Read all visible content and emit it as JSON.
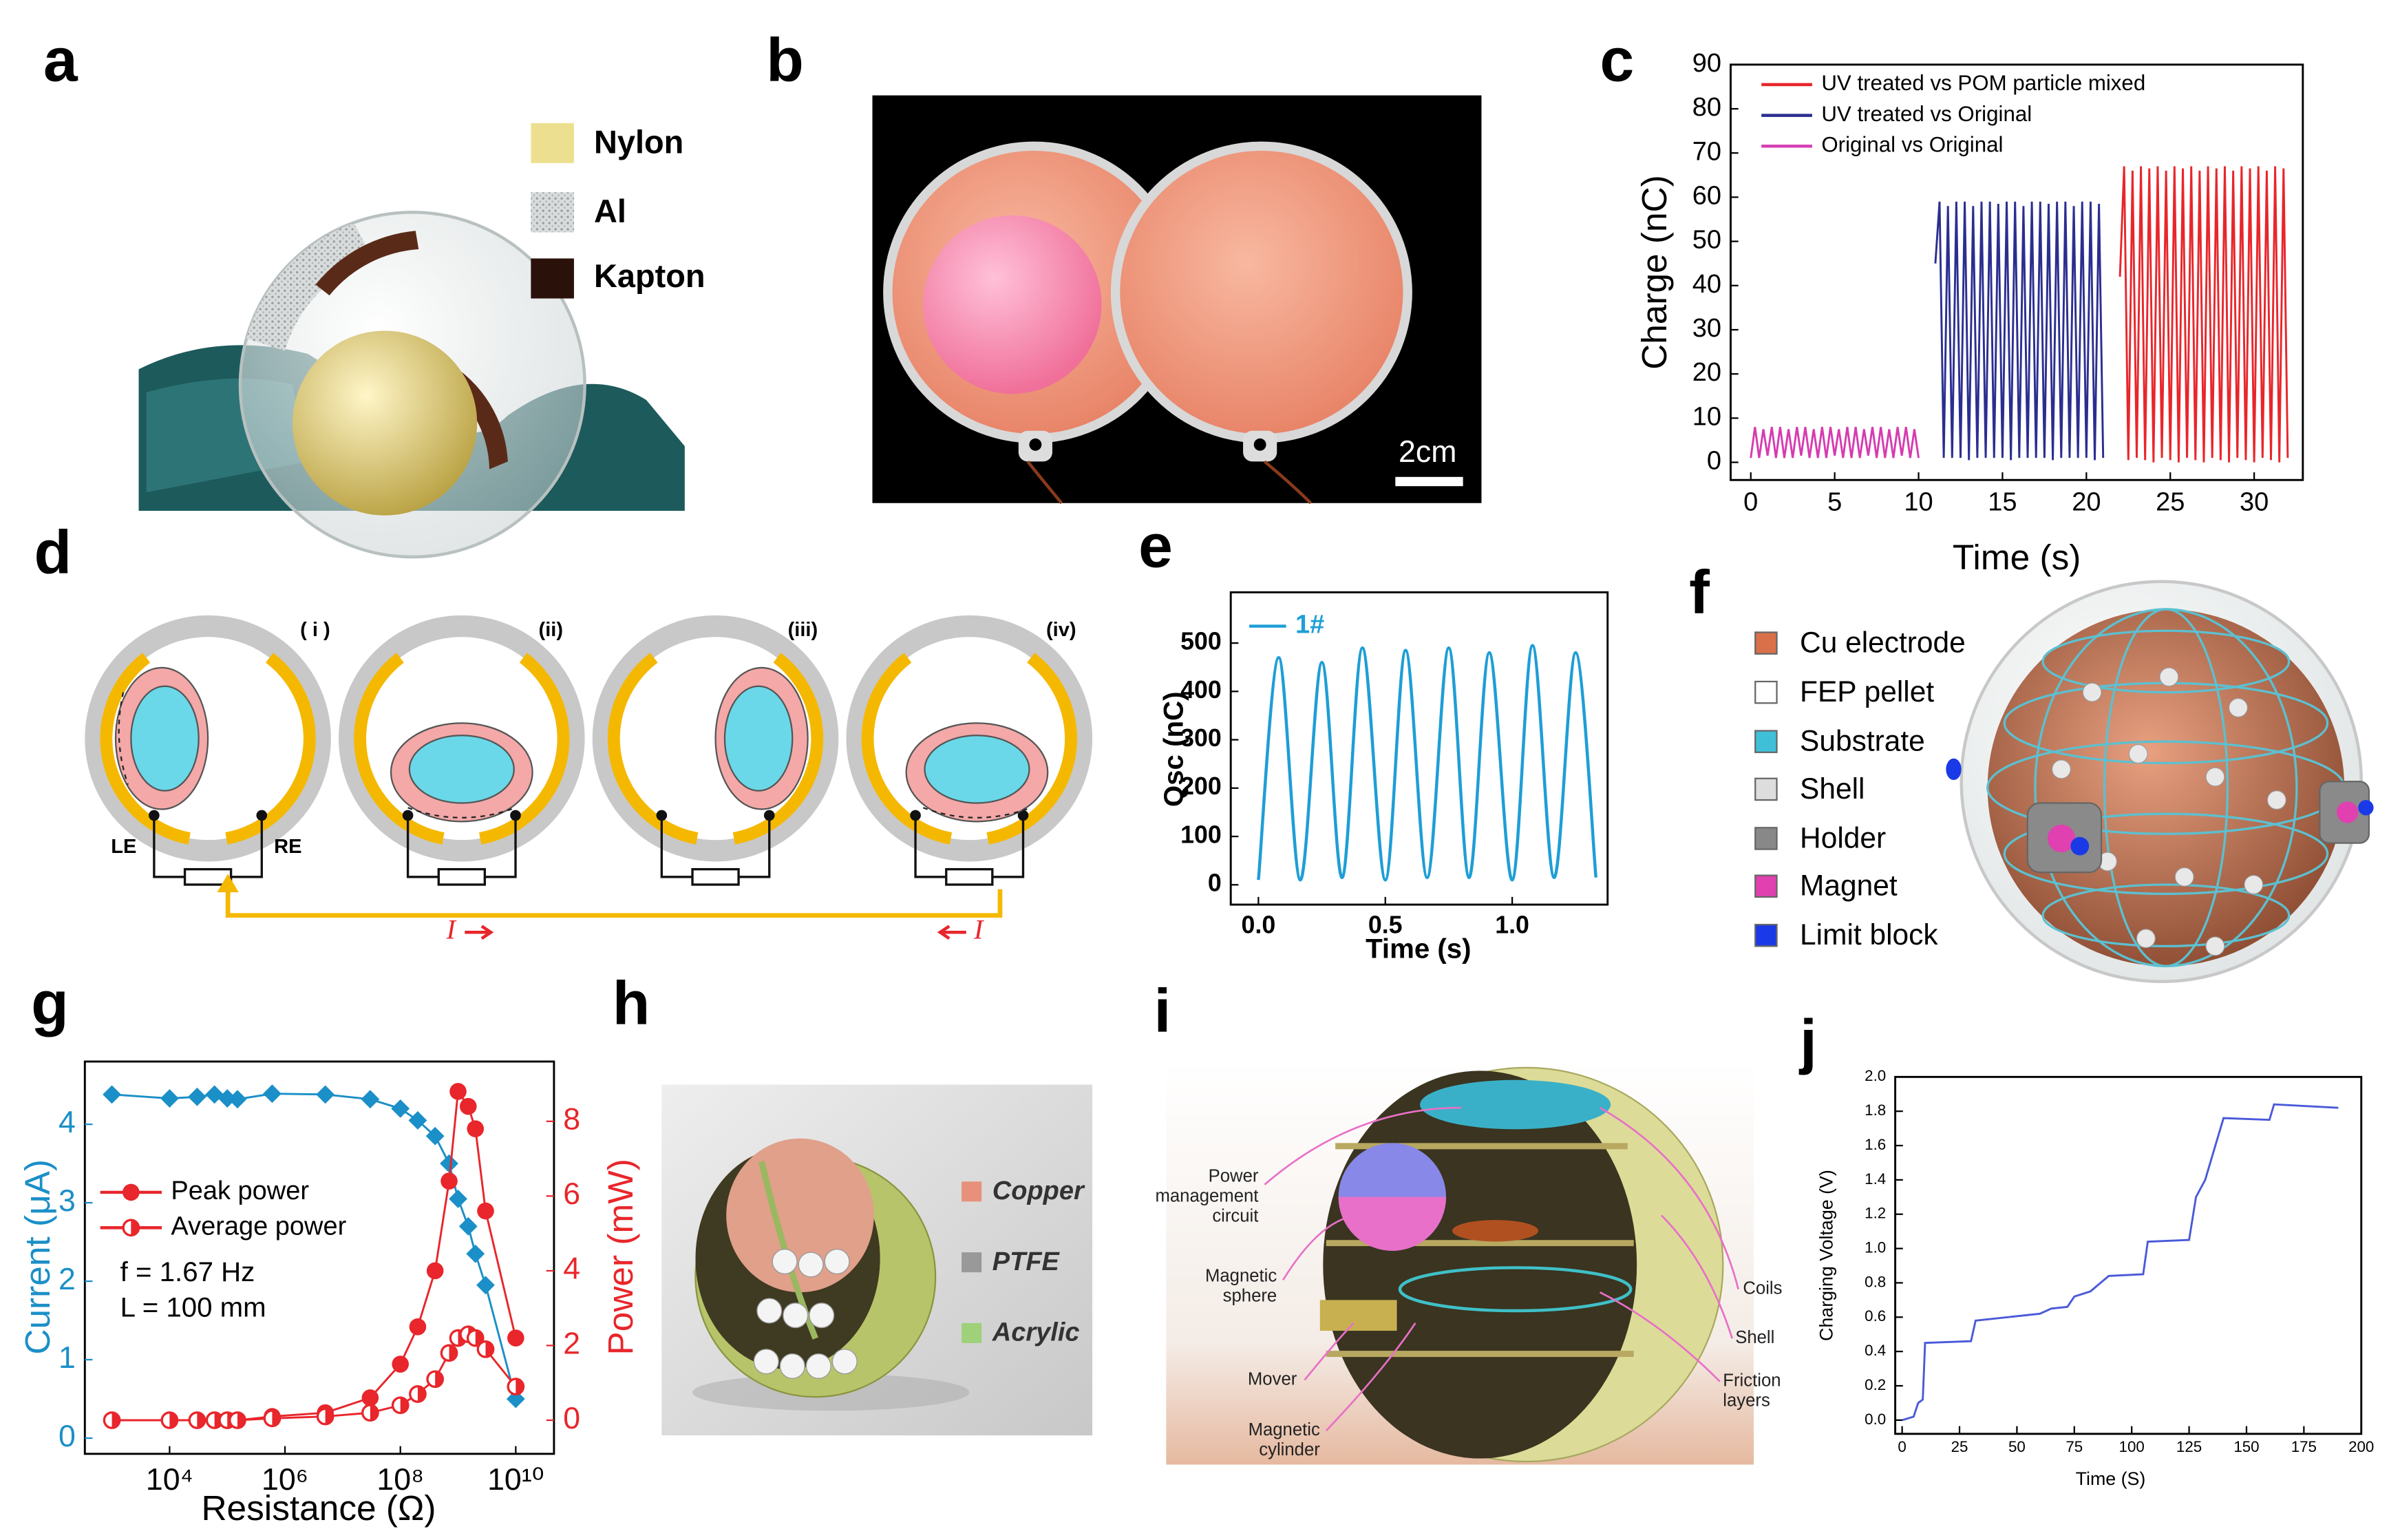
{
  "panel_labels": [
    "a",
    "b",
    "c",
    "d",
    "e",
    "f",
    "g",
    "h",
    "i",
    "j"
  ],
  "panel_a": {
    "legend": [
      "Nylon",
      "Al",
      "Kapton"
    ]
  },
  "panel_b": {
    "scale_bar": "2cm"
  },
  "panel_d": {
    "stages": [
      "( i )",
      "(ii)",
      "(iii)",
      "(iv)"
    ],
    "electrodes": [
      "LE",
      "RE"
    ],
    "current": [
      "I",
      "I"
    ]
  },
  "panel_f": {
    "legend": [
      "Cu electrode",
      "FEP pellet",
      "Substrate",
      "Shell",
      "Holder",
      "Magnet",
      "Limit block"
    ]
  },
  "panel_h": {
    "legend": [
      "Copper",
      "PTFE",
      "Acrylic"
    ]
  },
  "panel_i": {
    "labels": [
      [
        "Power",
        "management",
        "circuit"
      ],
      [
        "Magnetic",
        "sphere"
      ],
      [
        "Mover"
      ],
      [
        "Magnetic",
        "cylinder"
      ],
      [
        "Coils"
      ],
      [
        "Shell"
      ],
      [
        "Friction",
        "layers"
      ]
    ]
  },
  "chart_data": [
    {
      "type": "line",
      "xlabel": "Time (s)",
      "ylabel": "Charge (nC)",
      "xlim": [
        -1.2,
        32.9
      ],
      "ylim": [
        -4,
        90
      ],
      "xticks": [
        0,
        5,
        10,
        15,
        20,
        25,
        30
      ],
      "yticks": [
        0,
        10,
        20,
        30,
        40,
        50,
        60,
        70,
        80,
        90
      ],
      "legend": "upper left",
      "series": [
        {
          "name": "UV treated vs POM particle mixed",
          "color": "#e8262b",
          "x": [
            22,
            22.25,
            22.5,
            22.75,
            23,
            23.25,
            23.5,
            23.75,
            24,
            24.25,
            24.5,
            24.75,
            25,
            25.25,
            25.5,
            25.75,
            26,
            26.25,
            26.5,
            26.75,
            27,
            27.25,
            27.5,
            27.75,
            28,
            28.25,
            28.5,
            28.75,
            29,
            29.25,
            29.5,
            29.75,
            30,
            30.25,
            30.5,
            30.75,
            31,
            31.25,
            31.5,
            31.75,
            32
          ],
          "values": [
            42,
            67,
            0.5,
            66,
            1,
            67,
            0.5,
            66.5,
            0,
            67,
            1,
            66,
            0.5,
            67,
            0,
            66.5,
            1,
            67,
            0.5,
            66,
            0,
            67,
            1,
            66.5,
            0.5,
            67,
            0,
            66,
            1,
            67,
            0.5,
            66.5,
            0,
            67,
            1,
            66,
            0.5,
            67,
            0,
            66.5,
            1
          ]
        },
        {
          "name": "UV treated vs Original",
          "color": "#2b2e8f",
          "x": [
            11,
            11.25,
            11.5,
            11.75,
            12,
            12.25,
            12.5,
            12.75,
            13,
            13.25,
            13.5,
            13.75,
            14,
            14.25,
            14.5,
            14.75,
            15,
            15.25,
            15.5,
            15.75,
            16,
            16.25,
            16.5,
            16.75,
            17,
            17.25,
            17.5,
            17.75,
            18,
            18.25,
            18.5,
            18.75,
            19,
            19.25,
            19.5,
            19.75,
            20,
            20.25,
            20.5,
            20.75,
            21
          ],
          "values": [
            45,
            59,
            1,
            58,
            1,
            59,
            1,
            59,
            0.5,
            58,
            1,
            59,
            1,
            59,
            1,
            58.5,
            1,
            59,
            0.5,
            59,
            1,
            58,
            1,
            59,
            1,
            59,
            1,
            58.5,
            0.5,
            59,
            1,
            59,
            1,
            58,
            1,
            59,
            1,
            59,
            0.5,
            58.5,
            1
          ]
        },
        {
          "name": "Original vs Original",
          "color": "#d63bb0",
          "x": [
            0,
            0.25,
            0.5,
            0.75,
            1,
            1.25,
            1.5,
            1.75,
            2,
            2.25,
            2.5,
            2.75,
            3,
            3.25,
            3.5,
            3.75,
            4,
            4.25,
            4.5,
            4.75,
            5,
            5.25,
            5.5,
            5.75,
            6,
            6.25,
            6.5,
            6.75,
            7,
            7.25,
            7.5,
            7.75,
            8,
            8.25,
            8.5,
            8.75,
            9,
            9.25,
            9.5,
            9.75,
            10
          ],
          "values": [
            1,
            8,
            1,
            7.5,
            1.5,
            8,
            1,
            8,
            1,
            7.5,
            1,
            8,
            1.5,
            8,
            1,
            7.5,
            1,
            8,
            1,
            8,
            1.5,
            7.5,
            1,
            8,
            1,
            8,
            1,
            7.5,
            1.5,
            8,
            1,
            8,
            1,
            7.5,
            1,
            8,
            1.5,
            8,
            1,
            7.5,
            1
          ]
        }
      ]
    },
    {
      "type": "line",
      "xlabel": "Time (s)",
      "ylabel": "Qsc (nC)",
      "smooth": true,
      "xlim": [
        -0.109,
        1.376
      ],
      "ylim": [
        -41,
        605
      ],
      "xticks": [
        {
          "value": 0,
          "label": "0.0"
        },
        0.5,
        {
          "value": 1,
          "label": "1.0"
        }
      ],
      "yticks": [
        0,
        100,
        200,
        300,
        400,
        500
      ],
      "legend": "upper left",
      "series": [
        {
          "name": "1#",
          "color": "#1e9ed6",
          "x": [
            0,
            0.08,
            0.165,
            0.25,
            0.33,
            0.41,
            0.5,
            0.58,
            0.665,
            0.75,
            0.83,
            0.91,
            1,
            1.08,
            1.165,
            1.25,
            1.33
          ],
          "values": [
            10,
            470,
            10,
            460,
            15,
            490,
            10,
            485,
            15,
            490,
            15,
            480,
            10,
            495,
            15,
            480,
            15
          ]
        }
      ]
    },
    {
      "type": "line",
      "xlabel": "Resistance (Ω)",
      "ylabel": "Current (μA)",
      "y2label": "Power (mW)",
      "xscale": "log",
      "xlim": [
        340,
        46000000000
      ],
      "ylim": [
        -0.2,
        4.8
      ],
      "y2lim": [
        -0.9,
        9.6
      ],
      "xticks": [
        {
          "value": 10000,
          "label": "10⁴"
        },
        {
          "value": 1000000,
          "label": "10⁶"
        },
        {
          "value": 100000000,
          "label": "10⁸"
        },
        {
          "value": 10000000000,
          "label": "10¹⁰"
        }
      ],
      "yticks": [
        0,
        1,
        2,
        3,
        4
      ],
      "y2ticks": [
        0,
        2,
        4,
        6,
        8
      ],
      "ycolor": "#1b8fc7",
      "y2color": "#e8262b",
      "legend": "center left",
      "annotations": [
        "f = 1.67 Hz",
        "L = 100 mm"
      ],
      "x": [
        1000,
        10000,
        30000,
        60000,
        100000,
        150000,
        600000,
        5000000,
        30000000,
        100000000,
        200000000,
        400000000,
        700000000,
        1000000000,
        1500000000,
        2000000000,
        3000000000,
        10000000000
      ],
      "series": [
        {
          "color": "#1b8fc7",
          "marker": "diamond",
          "values": [
            4.38,
            4.33,
            4.35,
            4.38,
            4.33,
            4.32,
            4.39,
            4.38,
            4.32,
            4.2,
            4.05,
            3.85,
            3.5,
            3.05,
            2.7,
            2.35,
            1.95,
            0.5
          ]
        },
        {
          "name": "Peak power",
          "color": "#e8262b",
          "marker": "circle",
          "axis": "y2",
          "values": [
            0,
            0,
            0,
            0,
            0,
            0,
            0.1,
            0.2,
            0.6,
            1.5,
            2.5,
            4,
            6.4,
            8.8,
            8.4,
            7.8,
            5.6,
            2.2
          ]
        },
        {
          "name": "Average power",
          "color": "#e8262b",
          "marker": "half-circle",
          "axis": "y2",
          "values": [
            0,
            0,
            0,
            0,
            0,
            0,
            0.05,
            0.1,
            0.2,
            0.4,
            0.7,
            1.1,
            1.8,
            2.2,
            2.3,
            2.2,
            1.9,
            0.9
          ]
        }
      ]
    },
    {
      "type": "line",
      "xlabel": "Time (S)",
      "ylabel": "Charging Voltage (V)",
      "xlim": [
        -3,
        200
      ],
      "ylim": [
        -0.08,
        2.0
      ],
      "xticks": [
        0,
        25,
        50,
        75,
        100,
        125,
        150,
        175,
        200
      ],
      "yticks": [
        {
          "value": 0,
          "label": "0.0"
        },
        0.2,
        0.4,
        0.6,
        0.8,
        {
          "value": 1,
          "label": "1.0"
        },
        1.2,
        1.4,
        1.6,
        1.8,
        {
          "value": 2,
          "label": "2.0"
        }
      ],
      "series": [
        {
          "color": "#4a5ad9",
          "x": [
            0,
            5,
            7,
            9,
            10,
            30,
            32,
            60,
            65,
            72,
            75,
            82,
            90,
            105,
            107,
            125,
            128,
            132,
            140,
            160,
            162,
            190
          ],
          "values": [
            0,
            0.02,
            0.1,
            0.12,
            0.45,
            0.46,
            0.58,
            0.62,
            0.65,
            0.66,
            0.72,
            0.75,
            0.84,
            0.85,
            1.04,
            1.05,
            1.3,
            1.4,
            1.76,
            1.75,
            1.84,
            1.82
          ]
        }
      ]
    }
  ]
}
